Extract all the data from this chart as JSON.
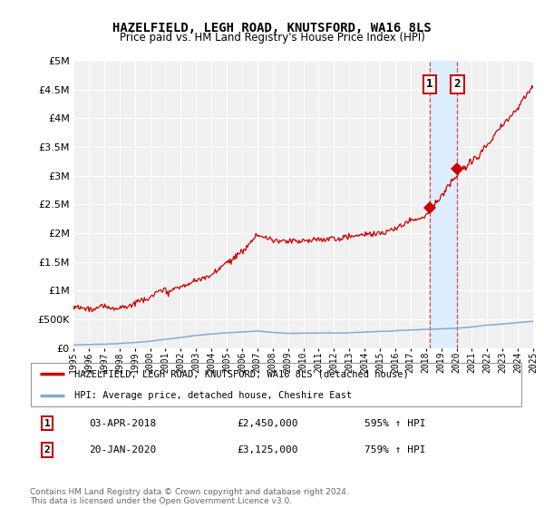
{
  "title": "HAZELFIELD, LEGH ROAD, KNUTSFORD, WA16 8LS",
  "subtitle": "Price paid vs. HM Land Registry's House Price Index (HPI)",
  "legend_line1": "HAZELFIELD, LEGH ROAD, KNUTSFORD, WA16 8LS (detached house)",
  "legend_line2": "HPI: Average price, detached house, Cheshire East",
  "transaction1_date": "03-APR-2018",
  "transaction1_price": "£2,450,000",
  "transaction1_hpi": "595% ↑ HPI",
  "transaction2_date": "20-JAN-2020",
  "transaction2_price": "£3,125,000",
  "transaction2_hpi": "759% ↑ HPI",
  "footer": "Contains HM Land Registry data © Crown copyright and database right 2024.\nThis data is licensed under the Open Government Licence v3.0.",
  "marker1_year": 2018.25,
  "marker1_value": 2450000,
  "marker2_year": 2020.05,
  "marker2_value": 3125000,
  "xmin": 1995,
  "xmax": 2025,
  "ymin": 0,
  "ymax": 5000000,
  "yticks": [
    0,
    500000,
    1000000,
    1500000,
    2000000,
    2500000,
    3000000,
    3500000,
    4000000,
    4500000,
    5000000
  ],
  "background_color": "#ffffff",
  "plot_bg_color": "#f0f0f0",
  "grid_color": "#ffffff",
  "red_line_color": "#cc0000",
  "blue_line_color": "#88aacc",
  "vline_color": "#dd4444",
  "span_color": "#ddeeff"
}
